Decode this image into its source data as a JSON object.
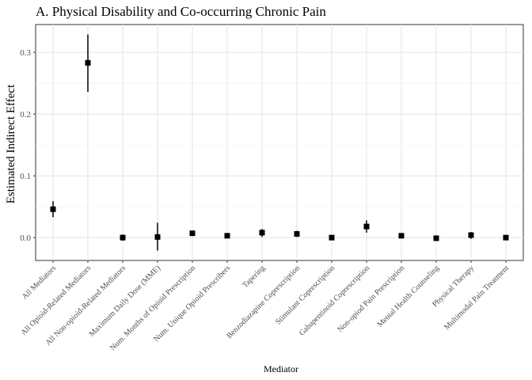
{
  "chart_data": {
    "type": "scatter",
    "title": "A. Physical Disability and Co-occurring Chronic Pain",
    "xlabel": "Mediator",
    "ylabel": "Estimated Indirect Effect",
    "ylim": [
      -0.037,
      0.345
    ],
    "yticks": [
      0.0,
      0.1,
      0.2,
      0.3
    ],
    "ytick_labels": [
      "0.0",
      "0.1",
      "0.2",
      "0.3"
    ],
    "grid": true,
    "categories": [
      "All Mediators",
      "All Opioid-Related Mediators",
      "All Non-opioid-Related Mediators",
      "Maximum Daily Dose (MME)",
      "Num. Months of Opioid Prescription",
      "Num. Unique Opioid Prescribers",
      "Tapering",
      "Benzodiazapine Coprescription",
      "Stimulant Coprescription",
      "Gabapentinoid Coprescription",
      "Non-opiod Pain Prescription",
      "Mental Health Counseling",
      "Physical Therapy",
      "Multimodal Pain Treatment"
    ],
    "series": [
      {
        "estimate": [
          0.046,
          0.283,
          0.0,
          0.001,
          0.007,
          0.003,
          0.008,
          0.006,
          0.0,
          0.018,
          0.003,
          -0.001,
          0.004,
          0.0
        ],
        "lower": [
          0.033,
          0.236,
          -0.005,
          -0.021,
          0.004,
          0.001,
          0.001,
          0.001,
          -0.003,
          0.008,
          0.001,
          -0.004,
          -0.002,
          -0.004
        ],
        "upper": [
          0.059,
          0.329,
          0.005,
          0.024,
          0.01,
          0.005,
          0.014,
          0.011,
          0.003,
          0.028,
          0.005,
          0.002,
          0.009,
          0.004
        ]
      }
    ]
  }
}
